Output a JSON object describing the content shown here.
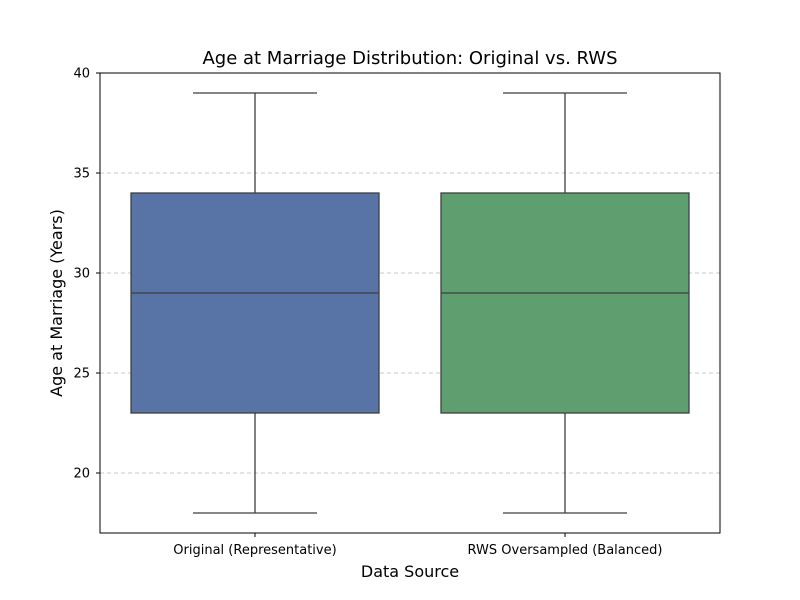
{
  "chart_data": {
    "type": "box",
    "title": "Age at Marriage Distribution: Original vs. RWS",
    "xlabel": "Data Source",
    "ylabel": "Age at Marriage (Years)",
    "ylim": [
      17,
      40
    ],
    "yticks": [
      20,
      25,
      30,
      35,
      40
    ],
    "grid": "y-dashed",
    "categories": [
      "Original (Representative)",
      "RWS Oversampled (Balanced)"
    ],
    "boxes": [
      {
        "category": "Original (Representative)",
        "min": 18,
        "q1": 23,
        "median": 29,
        "q3": 34,
        "max": 39,
        "color": "#5874a6"
      },
      {
        "category": "RWS Oversampled (Balanced)",
        "min": 18,
        "q1": 23,
        "median": 29,
        "q3": 34,
        "max": 39,
        "color": "#5f9f6f"
      }
    ]
  }
}
